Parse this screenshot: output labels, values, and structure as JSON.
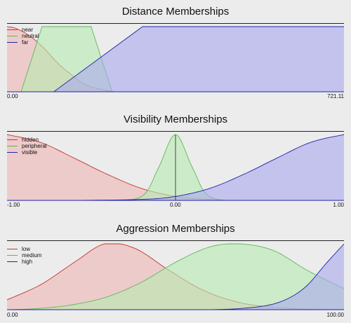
{
  "chart_data": [
    {
      "type": "area",
      "title": "Distance Memberships",
      "xlim": [
        0,
        721.11
      ],
      "ylim": [
        0,
        1
      ],
      "x_tick_labels": [
        "0.00",
        "721.11"
      ],
      "legend": {
        "placement": "top-left",
        "entries": [
          "near",
          "neutral",
          "far"
        ]
      },
      "series": [
        {
          "name": "near",
          "color": "#c0392b",
          "fill": "#f0b6b6",
          "points": [
            [
              0,
              1
            ],
            [
              20,
              0.97
            ],
            [
              50,
              0.85
            ],
            [
              80,
              0.66
            ],
            [
              110,
              0.43
            ],
            [
              140,
              0.25
            ],
            [
              170,
              0.1
            ],
            [
              200,
              0.04
            ],
            [
              230,
              0.0
            ]
          ]
        },
        {
          "name": "neutral",
          "color": "#5cb85c",
          "fill": "#b8ebb0",
          "points": [
            [
              30,
              0
            ],
            [
              75,
              1
            ],
            [
              180,
              1
            ],
            [
              225,
              0
            ]
          ]
        },
        {
          "name": "far",
          "color": "#2222aa",
          "fill": "#a8a8ef",
          "points": [
            [
              100,
              0
            ],
            [
              290,
              1
            ],
            [
              721.11,
              1
            ]
          ]
        }
      ]
    },
    {
      "type": "area",
      "title": "Visibility Memberships",
      "xlim": [
        -1,
        1
      ],
      "ylim": [
        0,
        1
      ],
      "x_tick_labels": [
        "-1.00",
        "0.00",
        "1.00"
      ],
      "legend": {
        "placement": "top-left",
        "entries": [
          "hidden",
          "peripheral",
          "visible"
        ]
      },
      "series": [
        {
          "name": "hidden",
          "color": "#c0392b",
          "fill": "#f0b6b6",
          "points": [
            [
              -1,
              1
            ],
            [
              -0.8,
              0.88
            ],
            [
              -0.6,
              0.64
            ],
            [
              -0.4,
              0.39
            ],
            [
              -0.2,
              0.18
            ],
            [
              0,
              0.06
            ],
            [
              0.2,
              0.015
            ],
            [
              0.3,
              0.0
            ]
          ]
        },
        {
          "name": "peripheral",
          "color": "#5cb85c",
          "fill": "#b8ebb0",
          "points": [
            [
              -0.4,
              0
            ],
            [
              -0.2,
              0.06
            ],
            [
              -0.1,
              0.5
            ],
            [
              0,
              1
            ],
            [
              0.1,
              0.5
            ],
            [
              0.2,
              0.06
            ],
            [
              0.4,
              0
            ]
          ]
        },
        {
          "name": "visible",
          "color": "#2222aa",
          "fill": "#a8a8ef",
          "points": [
            [
              -0.6,
              0
            ],
            [
              -0.2,
              0.015
            ],
            [
              0,
              0.06
            ],
            [
              0.2,
              0.18
            ],
            [
              0.4,
              0.39
            ],
            [
              0.6,
              0.64
            ],
            [
              0.8,
              0.88
            ],
            [
              1,
              1
            ]
          ]
        }
      ],
      "vertical_marker_x": 0
    },
    {
      "type": "area",
      "title": "Aggression Memberships",
      "xlim": [
        0,
        100
      ],
      "ylim": [
        0,
        1
      ],
      "x_tick_labels": [
        "0.00",
        "100.00"
      ],
      "legend": {
        "placement": "top-left",
        "entries": [
          "low",
          "medium",
          "high"
        ]
      },
      "series": [
        {
          "name": "low",
          "color": "#c0392b",
          "fill": "#f0b6b6",
          "points": [
            [
              0,
              0.15
            ],
            [
              10,
              0.38
            ],
            [
              20,
              0.72
            ],
            [
              29,
              1
            ],
            [
              38,
              0.93
            ],
            [
              48,
              0.6
            ],
            [
              58,
              0.3
            ],
            [
              68,
              0.12
            ],
            [
              78,
              0.04
            ],
            [
              88,
              0.01
            ],
            [
              100,
              0
            ]
          ]
        },
        {
          "name": "medium",
          "color": "#5cb85c",
          "fill": "#b8ebb0",
          "points": [
            [
              0,
              0.0
            ],
            [
              10,
              0.02
            ],
            [
              20,
              0.08
            ],
            [
              30,
              0.2
            ],
            [
              40,
              0.42
            ],
            [
              50,
              0.72
            ],
            [
              60,
              0.95
            ],
            [
              69,
              1
            ],
            [
              79,
              0.9
            ],
            [
              89,
              0.6
            ],
            [
              100,
              0.32
            ]
          ]
        },
        {
          "name": "high",
          "color": "#2222aa",
          "fill": "#a8a8ef",
          "points": [
            [
              60,
              0
            ],
            [
              70,
              0.02
            ],
            [
              80,
              0.1
            ],
            [
              88,
              0.32
            ],
            [
              95,
              0.72
            ],
            [
              100,
              1
            ]
          ]
        }
      ]
    }
  ]
}
